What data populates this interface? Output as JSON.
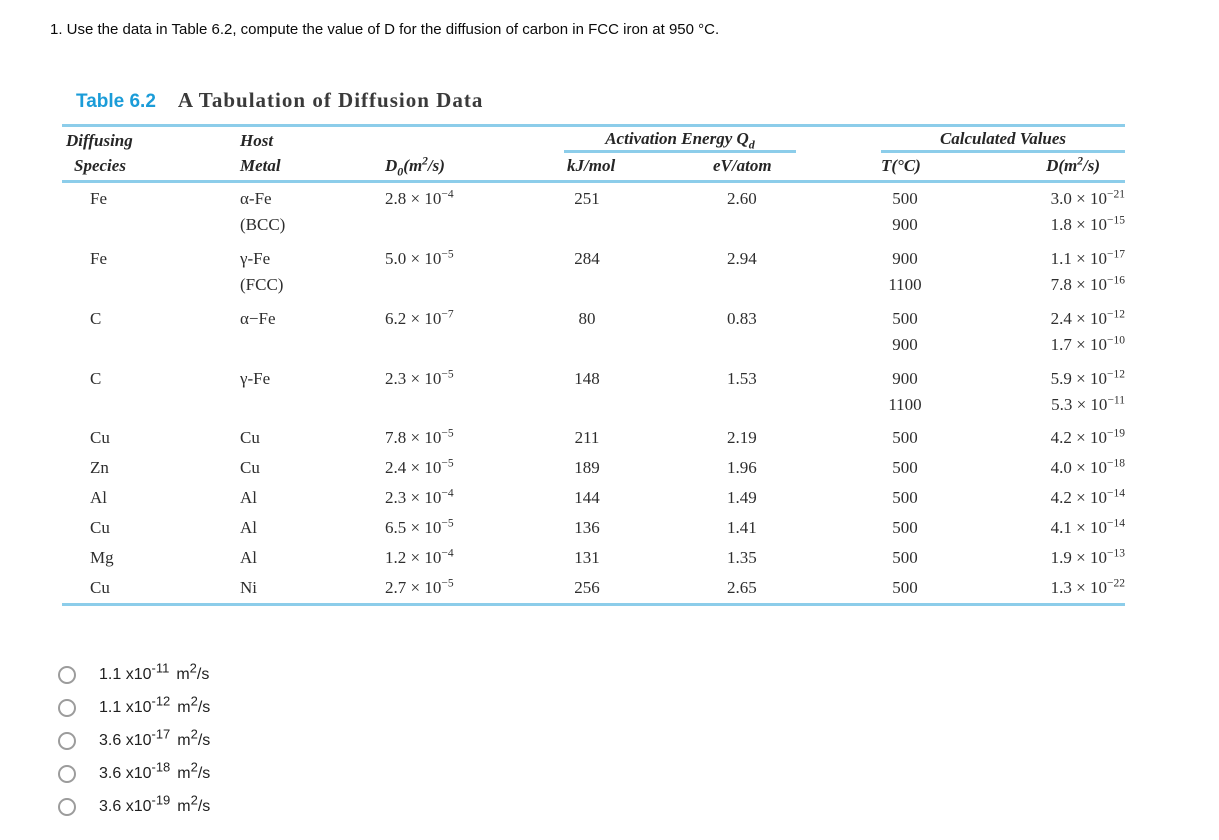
{
  "question": "1. Use the data in Table 6.2, compute the value of D for the diffusion of carbon in FCC iron at 950 °C.",
  "table": {
    "label": "Table 6.2",
    "title": "A Tabulation of Diffusion Data",
    "headers": {
      "col_species": [
        "Diffusing",
        "Species"
      ],
      "col_host": [
        "Host",
        "Metal"
      ],
      "d0": {
        "sym": "D",
        "sub": "0",
        "pre": "(m",
        "sup": "2",
        "post": "/s)"
      },
      "activation": {
        "text": "Activation Energy Q",
        "sub": "d"
      },
      "kj": "kJ/mol",
      "ev": "eV/atom",
      "calculated": "Calculated Values",
      "t": "T(°C)",
      "d": {
        "sym": "D",
        "pre": "(m",
        "sup": "2",
        "post": "/s)"
      }
    },
    "rows": [
      {
        "species": "Fe",
        "host": "α-Fe",
        "host2": "(BCC)",
        "d0m": "2.8 × 10",
        "d0e": "−4",
        "kj": "251",
        "ev": "2.60",
        "t1": "500",
        "t2": "900",
        "d1m": "3.0 × 10",
        "d1e": "−21",
        "d2m": "1.8 × 10",
        "d2e": "−15"
      },
      {
        "species": "Fe",
        "host": "γ-Fe",
        "host2": "(FCC)",
        "d0m": "5.0 × 10",
        "d0e": "−5",
        "kj": "284",
        "ev": "2.94",
        "t1": "900",
        "t2": "1100",
        "d1m": "1.1 × 10",
        "d1e": "−17",
        "d2m": "7.8 × 10",
        "d2e": "−16"
      },
      {
        "species": "C",
        "host": "α−Fe",
        "d0m": "6.2 × 10",
        "d0e": "−7",
        "kj": "80",
        "ev": "0.83",
        "t1": "500",
        "t2": "900",
        "d1m": "2.4 × 10",
        "d1e": "−12",
        "d2m": "1.7 × 10",
        "d2e": "−10"
      },
      {
        "species": "C",
        "host": "γ-Fe",
        "d0m": "2.3 × 10",
        "d0e": "−5",
        "kj": "148",
        "ev": "1.53",
        "t1": "900",
        "t2": "1100",
        "d1m": "5.9 × 10",
        "d1e": "−12",
        "d2m": "5.3 × 10",
        "d2e": "−11"
      },
      {
        "species": "Cu",
        "host": "Cu",
        "d0m": "7.8 × 10",
        "d0e": "−5",
        "kj": "211",
        "ev": "2.19",
        "t1": "500",
        "d1m": "4.2 × 10",
        "d1e": "−19"
      },
      {
        "species": "Zn",
        "host": "Cu",
        "d0m": "2.4 × 10",
        "d0e": "−5",
        "kj": "189",
        "ev": "1.96",
        "t1": "500",
        "d1m": "4.0 × 10",
        "d1e": "−18"
      },
      {
        "species": "Al",
        "host": "Al",
        "d0m": "2.3 × 10",
        "d0e": "−4",
        "kj": "144",
        "ev": "1.49",
        "t1": "500",
        "d1m": "4.2 × 10",
        "d1e": "−14"
      },
      {
        "species": "Cu",
        "host": "Al",
        "d0m": "6.5 × 10",
        "d0e": "−5",
        "kj": "136",
        "ev": "1.41",
        "t1": "500",
        "d1m": "4.1 × 10",
        "d1e": "−14"
      },
      {
        "species": "Mg",
        "host": "Al",
        "d0m": "1.2 × 10",
        "d0e": "−4",
        "kj": "131",
        "ev": "1.35",
        "t1": "500",
        "d1m": "1.9 × 10",
        "d1e": "−13"
      },
      {
        "species": "Cu",
        "host": "Ni",
        "d0m": "2.7 × 10",
        "d0e": "−5",
        "kj": "256",
        "ev": "2.65",
        "t1": "500",
        "d1m": "1.3 × 10",
        "d1e": "−22"
      }
    ]
  },
  "options": [
    {
      "base": "1.1 x10",
      "exp": "-11",
      "unit": "m",
      "usup": "2",
      "upost": "/s"
    },
    {
      "base": "1.1 x10",
      "exp": "-12",
      "unit": "m",
      "usup": "2",
      "upost": "/s"
    },
    {
      "base": "3.6 x10",
      "exp": "-17",
      "unit": "m",
      "usup": "2",
      "upost": "/s"
    },
    {
      "base": "3.6 x10",
      "exp": "-18",
      "unit": "m",
      "usup": "2",
      "upost": "/s"
    },
    {
      "base": "3.6 x10",
      "exp": "-19",
      "unit": "m",
      "usup": "2",
      "upost": "/s"
    }
  ],
  "colors": {
    "accent_blue": "#1b9cd8",
    "rule_blue": "#8ccdea"
  }
}
